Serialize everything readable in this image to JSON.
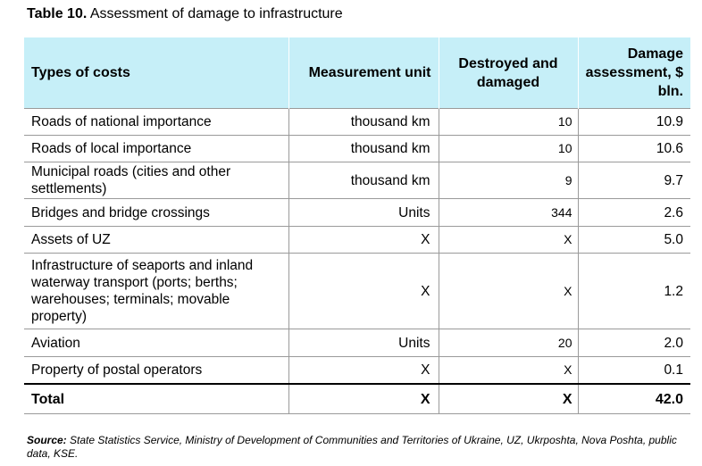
{
  "caption": {
    "label": "Table 10.",
    "title": "Assessment of damage to infrastructure"
  },
  "table": {
    "headers": [
      "Types of costs",
      "Measurement unit",
      "Destroyed and damaged",
      "Damage assessment, $ bln."
    ],
    "rows": [
      {
        "type": "Roads of national importance",
        "unit": "thousand km",
        "destroyed": "10",
        "damage": "10.9"
      },
      {
        "type": "Roads of local importance",
        "unit": "thousand km",
        "destroyed": "10",
        "damage": "10.6"
      },
      {
        "type": "Municipal roads (cities and other settlements)",
        "unit": "thousand km",
        "destroyed": "9",
        "damage": "9.7"
      },
      {
        "type": "Bridges and bridge crossings",
        "unit": "Units",
        "destroyed": "344",
        "damage": "2.6"
      },
      {
        "type": "Assets of UZ",
        "unit": "X",
        "destroyed": "X",
        "damage": "5.0"
      },
      {
        "type": "Infrastructure of seaports and inland waterway transport (ports; berths; warehouses; terminals; movable property)",
        "unit": "X",
        "destroyed": "X",
        "damage": "1.2"
      },
      {
        "type": "Aviation",
        "unit": "Units",
        "destroyed": "20",
        "damage": "2.0"
      },
      {
        "type": "Property of postal operators",
        "unit": "X",
        "destroyed": "X",
        "damage": "0.1"
      }
    ],
    "total": {
      "type": "Total",
      "unit": "X",
      "destroyed": "X",
      "damage": "42.0"
    }
  },
  "source": {
    "label": "Source:",
    "text": "State Statistics Service, Ministry of Development of Communities and Territories of Ukraine, UZ, Ukrposhta, Nova Poshta, public data, KSE."
  }
}
